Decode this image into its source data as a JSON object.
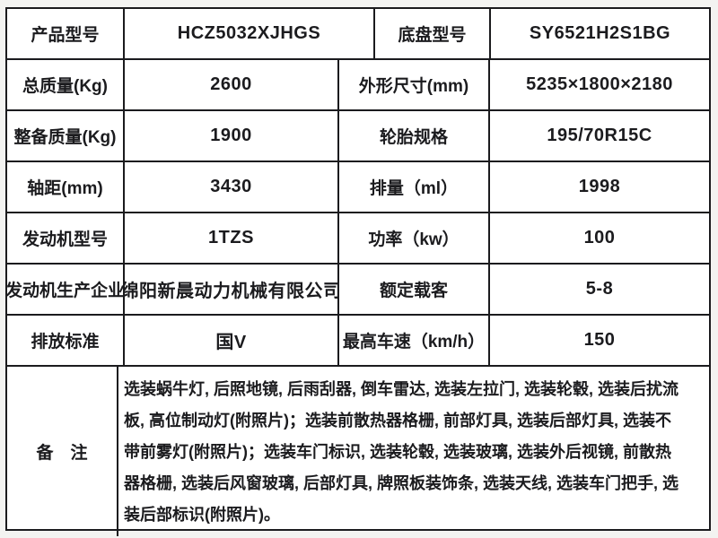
{
  "page": {
    "background_color": "#f3f3f1",
    "table_background_color": "#ffffff",
    "border_color": "#1b1b1e",
    "text_color": "#1b1b1e"
  },
  "table": {
    "rows": [
      [
        "产品型号",
        "HCZ5032XJHGS",
        "底盘型号",
        "SY6521H2S1BG"
      ],
      [
        "总质量(Kg)",
        "2600",
        "外形尺寸(mm)",
        "5235×1800×2180"
      ],
      [
        "整备质量(Kg)",
        "1900",
        "轮胎规格",
        "195/70R15C"
      ],
      [
        "轴距(mm)",
        "3430",
        "排量（ml）",
        "1998"
      ],
      [
        "发动机型号",
        "1TZS",
        "功率（kw）",
        "100"
      ],
      [
        "发动机生产企业",
        "绵阳新晨动力机械有限公司",
        "额定载客",
        "5-8"
      ],
      [
        "排放标准",
        "国V",
        "最高车速（km/h）",
        "150"
      ]
    ],
    "remark": {
      "label": "备　注",
      "lines": [
        "选装蜗牛灯, 后照地镜, 后雨刮器, 倒车雷达, 选装左拉门, 选装轮毂, 选装后扰流",
        "板, 高位制动灯(附照片)；选装前散热器格栅, 前部灯具, 选装后部灯具, 选装不",
        "带前雾灯(附照片)；选装车门标识, 选装轮毂, 选装玻璃, 选装外后视镜, 前散热",
        "器格栅, 选装后风窗玻璃, 后部灯具, 牌照板装饰条, 选装天线, 选装车门把手, 选",
        "装后部标识(附照片)。"
      ],
      "full_text": "选装蜗牛灯,后照地镜,后雨刮器,倒车雷达,选装左拉门,选装轮毂,选装后扰流板,高位制动灯(附照片)；选装前散热器格栅,前部灯具,选装后部灯具,选装不带前雾灯(附照片)；选装车门标识,选装轮毂,选装玻璃,选装外后视镜,前散热器格栅,选装后风窗玻璃,后部灯具,牌照板装饰条,选装天线,选装车门把手,选装后部标识(附照片)。"
    }
  }
}
